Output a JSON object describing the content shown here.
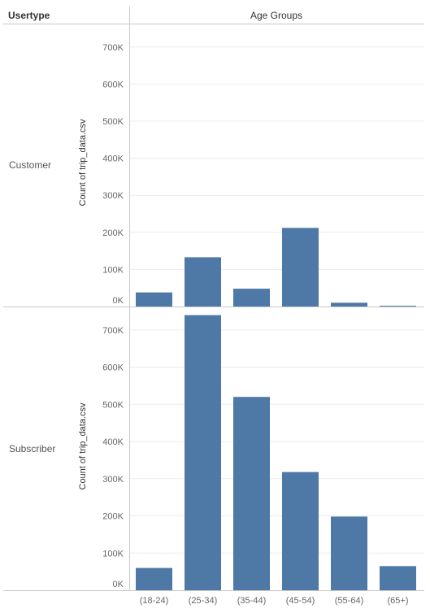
{
  "header": {
    "usertype_label": "Usertype",
    "column_label": "Age Groups"
  },
  "axis": {
    "ylabel": "Count of trip_data.csv"
  },
  "chart_data": {
    "type": "bar",
    "title": "",
    "xlabel": "",
    "ylabel": "Count of trip_data.csv",
    "categories": [
      "(18-24)",
      "(25-34)",
      "(35-44)",
      "(45-54)",
      "(55-64)",
      "(65+)"
    ],
    "ylim": [
      0,
      750000
    ],
    "yticks": [
      0,
      100000,
      200000,
      300000,
      400000,
      500000,
      600000,
      700000
    ],
    "ytick_labels": [
      "0K",
      "100K",
      "200K",
      "300K",
      "400K",
      "500K",
      "600K",
      "700K"
    ],
    "grid": true,
    "bar_color": "#4e79a7",
    "series": [
      {
        "name": "Customer",
        "values": [
          38000,
          133000,
          48000,
          212000,
          10000,
          2000
        ]
      },
      {
        "name": "Subscriber",
        "values": [
          60000,
          740000,
          520000,
          318000,
          198000,
          65000
        ]
      }
    ]
  }
}
